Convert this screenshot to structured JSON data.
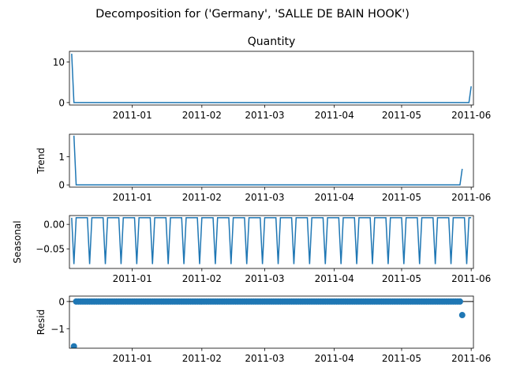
{
  "chart_data": {
    "suptitle": "Decomposition for ('Germany', 'SALLE DE BAIN HOOK')",
    "x_tick_labels": [
      "2011-01",
      "2011-02",
      "2011-03",
      "2011-04",
      "2011-05",
      "2011-06"
    ],
    "series_color": "#1f77b4",
    "panels": [
      {
        "type": "line",
        "title": "Quantity",
        "ylabel": "",
        "ylim": [
          -0.6,
          12.6
        ],
        "yticks": [
          0,
          10
        ],
        "ytick_labels": [
          "0",
          "10"
        ],
        "x": [
          "2010-12-05",
          "2010-12-06",
          "2011-05-31",
          "2011-06-01"
        ],
        "y": [
          12,
          0,
          0,
          4
        ]
      },
      {
        "type": "line",
        "title": "",
        "ylabel": "Trend",
        "ylim": [
          -0.08,
          1.8
        ],
        "yticks": [
          0,
          1
        ],
        "ytick_labels": [
          "0",
          "1"
        ],
        "x": [
          "2010-12-06",
          "2010-12-07",
          "2011-05-27",
          "2011-05-28"
        ],
        "y": [
          1.75,
          0,
          0,
          0.57
        ]
      },
      {
        "type": "seasonal",
        "title": "",
        "ylabel": "Seasonal",
        "ylim": [
          -0.09,
          0.018
        ],
        "yticks": [
          0.0,
          -0.05
        ],
        "ytick_labels": [
          "0.00",
          "−0.05"
        ],
        "period_days": 7,
        "peak": 0.0135,
        "trough": -0.081,
        "x_start": "2010-12-05",
        "x_end": "2011-06-01"
      },
      {
        "type": "scatter",
        "title": "",
        "ylabel": "Resid",
        "ylim": [
          -1.72,
          0.2
        ],
        "yticks": [
          0,
          -1
        ],
        "ytick_labels": [
          "0",
          "−1"
        ],
        "zero_line": true,
        "x_start": "2010-12-07",
        "x_end": "2011-05-27",
        "step_days": 1,
        "base_value": 0,
        "outliers": [
          {
            "x": "2010-12-06",
            "y": -1.65
          },
          {
            "x": "2011-05-28",
            "y": -0.5
          }
        ]
      }
    ]
  }
}
